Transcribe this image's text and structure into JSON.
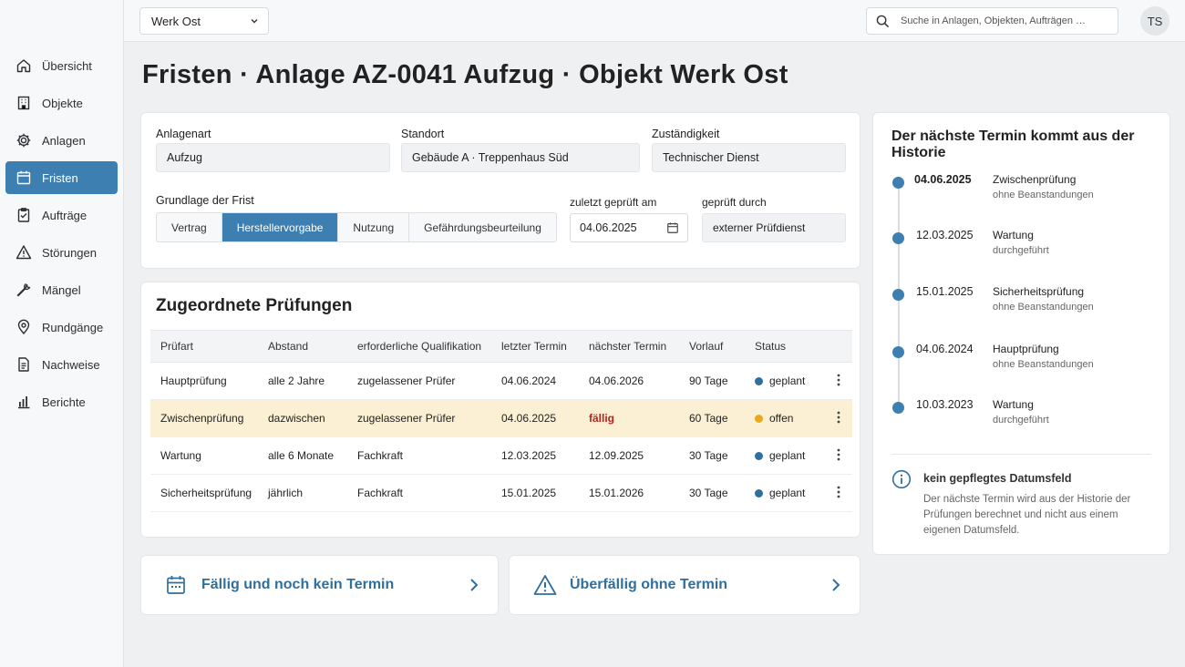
{
  "header": {
    "site_select": "Werk Ost",
    "search_placeholder": "Suche in Anlagen, Objekten, Aufträgen …",
    "avatar_initials": "TS"
  },
  "sidebar": {
    "items": [
      {
        "label": "Übersicht",
        "icon": "home-icon",
        "active": false
      },
      {
        "label": "Objekte",
        "icon": "building-icon",
        "active": false
      },
      {
        "label": "Anlagen",
        "icon": "gear-icon",
        "active": false
      },
      {
        "label": "Fristen",
        "icon": "calendar-icon",
        "active": true
      },
      {
        "label": "Aufträge",
        "icon": "clipboard-icon",
        "active": false
      },
      {
        "label": "Störungen",
        "icon": "warning-icon",
        "active": false
      },
      {
        "label": "Mängel",
        "icon": "wrench-icon",
        "active": false
      },
      {
        "label": "Rundgänge",
        "icon": "location-pin-icon",
        "active": false
      },
      {
        "label": "Nachweise",
        "icon": "document-icon",
        "active": false
      },
      {
        "label": "Berichte",
        "icon": "bar-chart-icon",
        "active": false
      }
    ]
  },
  "page": {
    "title": "Fristen · Anlage AZ-0041 Aufzug · Objekt Werk Ost"
  },
  "details": {
    "anlagenart": {
      "label": "Anlagenart",
      "value": "Aufzug"
    },
    "standort": {
      "label": "Standort",
      "value": "Gebäude A · Treppenhaus Süd"
    },
    "zustaendigkeit": {
      "label": "Zuständigkeit",
      "value": "Technischer Dienst"
    },
    "grundlage": {
      "label": "Grundlage der Frist",
      "options": [
        "Vertrag",
        "Herstellervorgabe",
        "Nutzung",
        "Gefährdungsbeurteilung"
      ],
      "selected": "Herstellervorgabe"
    },
    "zuletzt": {
      "label": "zuletzt geprüft am",
      "value": "04.06.2025"
    },
    "geprueft_durch": {
      "label": "geprüft durch",
      "value": "externer Prüfdienst"
    }
  },
  "pruefungen": {
    "title": "Zugeordnete Prüfungen",
    "columns": [
      "Prüfart",
      "Abstand",
      "erforderliche Qualifikation",
      "letzter Termin",
      "nächster Termin",
      "Vorlauf",
      "Status"
    ],
    "rows": [
      {
        "pruefart": "Hauptprüfung",
        "abstand": "alle 2 Jahre",
        "qualifikation": "zugelassener Prüfer",
        "letzter": "04.06.2024",
        "naechster": "04.06.2026",
        "vorlauf": "90 Tage",
        "status": "geplant",
        "status_color": "#2f6f9e",
        "highlight": false,
        "overdue": false
      },
      {
        "pruefart": "Zwischenprüfung",
        "abstand": "dazwischen",
        "qualifikation": "zugelassener Prüfer",
        "letzter": "04.06.2025",
        "naechster": "fällig",
        "vorlauf": "60 Tage",
        "status": "offen",
        "status_color": "#e8a91c",
        "highlight": true,
        "overdue": true
      },
      {
        "pruefart": "Wartung",
        "abstand": "alle 6 Monate",
        "qualifikation": "Fachkraft",
        "letzter": "12.03.2025",
        "naechster": "12.09.2025",
        "vorlauf": "30 Tage",
        "status": "geplant",
        "status_color": "#2f6f9e",
        "highlight": false,
        "overdue": false
      },
      {
        "pruefart": "Sicherheitsprüfung",
        "abstand": "jährlich",
        "qualifikation": "Fachkraft",
        "letzter": "15.01.2025",
        "naechster": "15.01.2026",
        "vorlauf": "30 Tage",
        "status": "geplant",
        "status_color": "#2f6f9e",
        "highlight": false,
        "overdue": false
      }
    ]
  },
  "quick_links": [
    {
      "label": "Fällig und noch kein Termin",
      "icon": "calendar-icon"
    },
    {
      "label": "Überfällig ohne Termin",
      "icon": "warning-icon"
    }
  ],
  "timeline": {
    "title": "Der nächste Termin kommt aus der Historie",
    "items": [
      {
        "date": "04.06.2025",
        "name": "Zwischenprüfung",
        "sub": "ohne Beanstandungen",
        "bold": true
      },
      {
        "date": "12.03.2025",
        "name": "Wartung",
        "sub": "durchgeführt",
        "bold": false
      },
      {
        "date": "15.01.2025",
        "name": "Sicherheitsprüfung",
        "sub": "ohne Beanstandungen",
        "bold": false
      },
      {
        "date": "04.06.2024",
        "name": "Hauptprüfung",
        "sub": "ohne Beanstandungen",
        "bold": false
      },
      {
        "date": "10.03.2023",
        "name": "Wartung",
        "sub": "durchgeführt",
        "bold": false
      }
    ],
    "note_title": "kein gepflegtes Datumsfeld",
    "note_body": "Der nächste Termin wird aus der Historie der Prüfungen berechnet und nicht aus einem eigenen Datumsfeld."
  }
}
